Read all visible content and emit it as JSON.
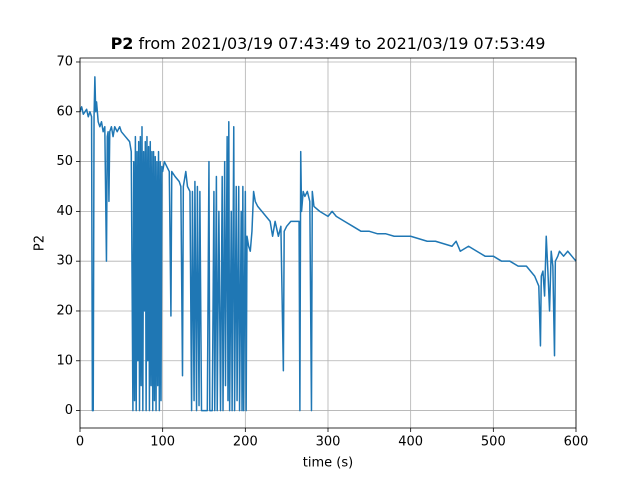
{
  "chart_data": {
    "type": "line",
    "title": {
      "bold": "P2",
      "rest": "from 2021/03/19 07:43:49 to 2021/03/19 07:53:49"
    },
    "x_label": "time (s)",
    "y_label": "P2",
    "color": "#1f77b4",
    "grid": true,
    "xlim": [
      0,
      600
    ],
    "ylim": [
      -3.5,
      70.8
    ],
    "xticks": [
      0,
      100,
      200,
      300,
      400,
      500,
      600
    ],
    "yticks": [
      0,
      10,
      20,
      30,
      40,
      50,
      60,
      70
    ],
    "x": [
      0,
      2,
      4,
      6,
      8,
      10,
      12,
      14,
      15,
      16,
      17,
      18,
      19,
      20,
      22,
      24,
      26,
      28,
      30,
      32,
      33,
      34,
      35,
      36,
      38,
      40,
      42,
      45,
      48,
      50,
      55,
      60,
      62,
      64,
      65,
      66,
      67,
      68,
      69,
      70,
      71,
      72,
      73,
      74,
      75,
      76,
      77,
      78,
      79,
      80,
      81,
      82,
      83,
      84,
      85,
      86,
      87,
      88,
      89,
      90,
      91,
      92,
      93,
      94,
      95,
      96,
      97,
      98,
      99,
      100,
      102,
      105,
      108,
      110,
      111,
      115,
      120,
      122,
      124,
      125,
      128,
      130,
      133,
      135,
      136,
      138,
      139,
      141,
      142,
      144,
      145,
      147,
      150,
      152,
      154,
      156,
      157,
      160,
      162,
      163,
      165,
      166,
      168,
      170,
      172,
      173,
      175,
      176,
      178,
      179,
      180,
      181,
      183,
      184,
      186,
      187,
      189,
      190,
      192,
      193,
      195,
      196,
      197,
      198,
      200,
      201,
      202,
      204,
      206,
      208,
      210,
      212,
      215,
      220,
      225,
      230,
      233,
      236,
      240,
      243,
      246,
      247,
      250,
      255,
      260,
      265,
      266,
      267,
      268,
      270,
      272,
      275,
      278,
      280,
      281,
      283,
      290,
      300,
      305,
      310,
      320,
      330,
      340,
      350,
      360,
      370,
      380,
      390,
      400,
      410,
      420,
      430,
      440,
      450,
      455,
      460,
      470,
      480,
      490,
      500,
      510,
      520,
      530,
      540,
      550,
      555,
      557,
      558,
      560,
      562,
      564,
      566,
      568,
      570,
      572,
      574,
      575,
      578,
      580,
      585,
      590,
      595,
      600
    ],
    "values": [
      60,
      61,
      59.5,
      60,
      60.5,
      59,
      60,
      59,
      0,
      0,
      59,
      67,
      60,
      62,
      58,
      57,
      58,
      56,
      57,
      30,
      55,
      56,
      42,
      56,
      57,
      55,
      57,
      56,
      57,
      56,
      55,
      54,
      52,
      0,
      50,
      2,
      55,
      0,
      52,
      10,
      54,
      0,
      55,
      5,
      57,
      0,
      52,
      20,
      54,
      0,
      55,
      10,
      53,
      0,
      54,
      5,
      52,
      0,
      52,
      2,
      51,
      0,
      50,
      5,
      52,
      0,
      50,
      2,
      49,
      48,
      50,
      49,
      48,
      19,
      48,
      47,
      46,
      45,
      7,
      45,
      48,
      45,
      44,
      0,
      44,
      2,
      46,
      0,
      45,
      1,
      44,
      0,
      0,
      0,
      0,
      50,
      0,
      0,
      44,
      0,
      47,
      0,
      40,
      0,
      47,
      0,
      50,
      5,
      55,
      2,
      58,
      0,
      40,
      0,
      57,
      0,
      45,
      2,
      45,
      0,
      40,
      0,
      45,
      0,
      44,
      0,
      35,
      33,
      32,
      36,
      44,
      42,
      41,
      40,
      39,
      38,
      35,
      38,
      35,
      37,
      8,
      36,
      37,
      38,
      38,
      38,
      0,
      52,
      40,
      44,
      43,
      44,
      42,
      0,
      44,
      41,
      40,
      39,
      40,
      39,
      38,
      37,
      36,
      36,
      35.5,
      35.5,
      35,
      35,
      35,
      34.5,
      34,
      34,
      33.5,
      33,
      34,
      32,
      33,
      32,
      31,
      31,
      30,
      30,
      29,
      29,
      27,
      25,
      13,
      27,
      28,
      23,
      35,
      28,
      20,
      32,
      29,
      11,
      30,
      31,
      32,
      31,
      32,
      31,
      30
    ]
  }
}
